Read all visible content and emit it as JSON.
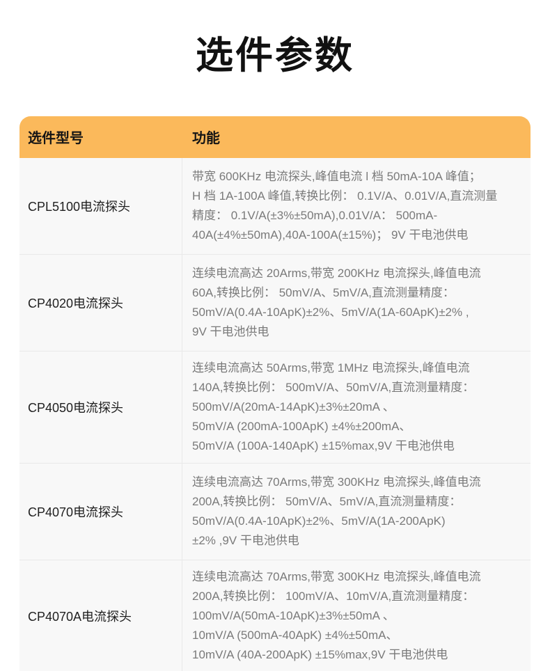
{
  "title": "选件参数",
  "colors": {
    "header_bg": "#FBB95B",
    "body_bg": "#F8F8F8",
    "divider": "#E9E9E9",
    "model_text": "#1F1F1F",
    "function_text": "#7A7A7A",
    "title_text": "#111111"
  },
  "table": {
    "header": {
      "model": "选件型号",
      "function": "功能"
    },
    "rows": [
      {
        "model": "CPL5100电流探头",
        "lines": [
          "带宽 600KHz 电流探头,峰值电流 l 档 50mA-10A 峰值；",
          "H 档 1A-100A 峰值,转换比例： 0.1V/A、0.01V/A,直流测量",
          "精度： 0.1V/A(±3%±50mA),0.01V/A： 500mA-",
          "40A(±4%±50mA),40A-100A(±15%)； 9V 干电池供电"
        ]
      },
      {
        "model": "CP4020电流探头",
        "lines": [
          "连续电流高达 20Arms,带宽 200KHz 电流探头,峰值电流",
          "60A,转换比例： 50mV/A、5mV/A,直流测量精度：",
          "50mV/A(0.4A-10ApK)±2%、5mV/A(1A-60ApK)±2% ,",
          "9V 干电池供电"
        ]
      },
      {
        "model": "CP4050电流探头",
        "lines": [
          "连续电流高达 50Arms,带宽 1MHz 电流探头,峰值电流",
          "140A,转换比例： 500mV/A、50mV/A,直流测量精度：",
          "500mV/A(20mA-14ApK)±3%±20mA 、",
          "50mV/A (200mA-100ApK) ±4%±200mA、",
          "50mV/A (100A-140ApK) ±15%max,9V 干电池供电"
        ]
      },
      {
        "model": "CP4070电流探头",
        "lines": [
          "连续电流高达 70Arms,带宽 300KHz 电流探头,峰值电流",
          "200A,转换比例： 50mV/A、5mV/A,直流测量精度：",
          "50mV/A(0.4A-10ApK)±2%、5mV/A(1A-200ApK)",
          "±2% ,9V 干电池供电"
        ]
      },
      {
        "model": "CP4070A电流探头",
        "lines": [
          "连续电流高达 70Arms,带宽 300KHz 电流探头,峰值电流",
          "200A,转换比例： 100mV/A、10mV/A,直流测量精度：",
          "100mV/A(50mA-10ApK)±3%±50mA 、",
          "10mV/A (500mA-40ApK) ±4%±50mA、",
          "10mV/A (40A-200ApK) ±15%max,9V 干电池供电"
        ]
      }
    ]
  }
}
